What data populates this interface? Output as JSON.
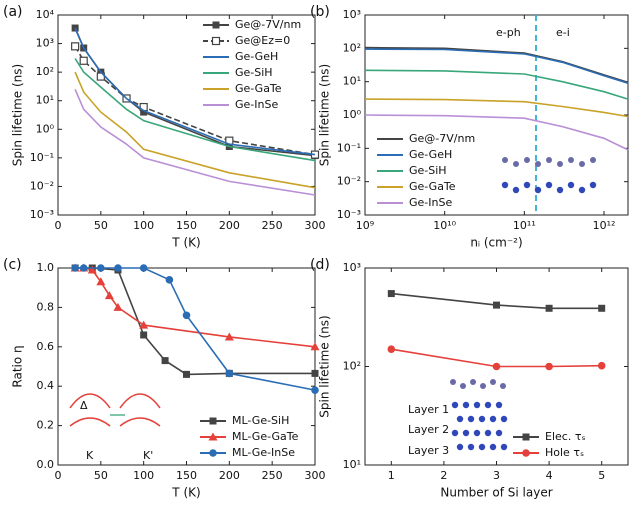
{
  "chart_data": [
    {
      "type": "line",
      "panel_label": "(a)",
      "x_label": "T (K)",
      "y_label": "Spin lifetime (ns)",
      "x": [
        20,
        30,
        50,
        80,
        100,
        200,
        300
      ],
      "xlim": [
        0,
        300
      ],
      "xticks": [
        0,
        50,
        100,
        150,
        200,
        250,
        300
      ],
      "ylim": [
        0.001,
        10000
      ],
      "ylog": true,
      "yticks": [
        {
          "value": 0.001,
          "label": "10⁻³"
        },
        {
          "value": 0.01,
          "label": "10⁻²"
        },
        {
          "value": 0.1,
          "label": "10⁻¹"
        },
        {
          "value": 1,
          "label": "10⁰"
        },
        {
          "value": 10,
          "label": "10¹"
        },
        {
          "value": 100,
          "label": "10²"
        },
        {
          "value": 1000,
          "label": "10³"
        },
        {
          "value": 10000,
          "label": "10⁴"
        }
      ],
      "legend": "upper right",
      "series": [
        {
          "name": "Ge@-7V/nm",
          "color": "#444444",
          "marker": "square",
          "values": [
            3500,
            700,
            100,
            12,
            4,
            0.25,
            0.12
          ]
        },
        {
          "name": "Ge@Ez=0",
          "color": "#444444",
          "marker": "open-square",
          "dash": true,
          "values": [
            800,
            250,
            70,
            12,
            6,
            0.4,
            0.13
          ]
        },
        {
          "name": "Ge-GeH",
          "color": "#2a6db5",
          "values": [
            3500,
            700,
            100,
            12,
            4.5,
            0.3,
            0.13
          ]
        },
        {
          "name": "Ge-SiH",
          "color": "#3aa77a",
          "values": [
            300,
            100,
            30,
            5,
            2,
            0.25,
            0.08
          ]
        },
        {
          "name": "Ge-GaTe",
          "color": "#c9a227",
          "values": [
            100,
            20,
            4,
            0.8,
            0.2,
            0.03,
            0.009
          ]
        },
        {
          "name": "Ge-InSe",
          "color": "#b98fd6",
          "values": [
            25,
            5,
            1.2,
            0.3,
            0.1,
            0.015,
            0.005
          ]
        }
      ]
    },
    {
      "type": "line",
      "panel_label": "(b)",
      "x_label": "nᵢ (cm⁻²)",
      "y_label": "Spin lifetime (ns)",
      "x": [
        1000000000,
        10000000000,
        100000000000,
        300000000000,
        1000000000000,
        2000000000000
      ],
      "xlim": [
        1000000000,
        2000000000000
      ],
      "xlog": true,
      "xticks": [
        {
          "value": 1000000000,
          "label": "10⁹"
        },
        {
          "value": 10000000000,
          "label": "10¹⁰"
        },
        {
          "value": 100000000000,
          "label": "10¹¹"
        },
        {
          "value": 1000000000000,
          "label": "10¹²"
        }
      ],
      "ylim": [
        0.001,
        1000
      ],
      "ylog": true,
      "yticks": [
        {
          "value": 0.001,
          "label": "10⁻³"
        },
        {
          "value": 0.01,
          "label": "10⁻²"
        },
        {
          "value": 0.1,
          "label": "10⁻¹"
        },
        {
          "value": 1,
          "label": "10⁰"
        },
        {
          "value": 10,
          "label": "10¹"
        },
        {
          "value": 100,
          "label": "10²"
        },
        {
          "value": 1000,
          "label": "10³"
        }
      ],
      "vline": 140000000000,
      "vline_color": "#3fb6d8",
      "annotations": [
        "e-ph",
        "e-i"
      ],
      "legend": "lower left",
      "series": [
        {
          "name": "Ge@-7V/nm",
          "color": "#444444",
          "values": [
            105,
            100,
            72,
            40,
            16,
            9.5
          ]
        },
        {
          "name": "Ge-GeH",
          "color": "#2a6db5",
          "values": [
            95,
            92,
            68,
            38,
            15,
            9
          ]
        },
        {
          "name": "Ge-SiH",
          "color": "#3aa77a",
          "values": [
            22,
            21,
            17,
            10,
            5,
            3
          ]
        },
        {
          "name": "Ge-GaTe",
          "color": "#c9a227",
          "values": [
            3,
            2.9,
            2.5,
            1.8,
            1.2,
            0.9
          ]
        },
        {
          "name": "Ge-InSe",
          "color": "#b98fd6",
          "values": [
            1,
            0.95,
            0.8,
            0.45,
            0.2,
            0.09
          ]
        }
      ]
    },
    {
      "type": "line",
      "panel_label": "(c)",
      "x_label": "T (K)",
      "y_label": "Ratio η",
      "xlim": [
        0,
        300
      ],
      "xticks": [
        0,
        50,
        100,
        150,
        200,
        250,
        300
      ],
      "ylim": [
        0,
        1
      ],
      "yticks": [
        {
          "value": 0,
          "label": "0.0"
        },
        0.2,
        0.4,
        0.6,
        0.8,
        {
          "value": 1,
          "label": "1.0"
        }
      ],
      "annotations": [
        "Δ",
        "K",
        "K'"
      ],
      "legend": "lower right",
      "series": [
        {
          "name": "ML-Ge-SiH",
          "color": "#444444",
          "marker": "square",
          "x": [
            20,
            40,
            70,
            100,
            125,
            150,
            200,
            300
          ],
          "values": [
            1,
            1,
            0.99,
            0.66,
            0.53,
            0.46,
            0.465,
            0.465
          ]
        },
        {
          "name": "ML-Ge-GaTe",
          "color": "#e5403a",
          "marker": "triangle",
          "x": [
            20,
            30,
            40,
            50,
            60,
            70,
            100,
            200,
            300
          ],
          "values": [
            1,
            1,
            0.99,
            0.93,
            0.86,
            0.8,
            0.71,
            0.65,
            0.6
          ]
        },
        {
          "name": "ML-Ge-InSe",
          "color": "#2a6db5",
          "marker": "circle",
          "x": [
            20,
            30,
            50,
            70,
            100,
            130,
            150,
            200,
            300
          ],
          "values": [
            1,
            1,
            1,
            1,
            1,
            0.94,
            0.76,
            0.465,
            0.38
          ]
        }
      ]
    },
    {
      "type": "line",
      "panel_label": "(d)",
      "x_label": "Number of Si layer",
      "y_label": "Spin lifetime (ns)",
      "x": [
        1,
        3,
        4,
        5
      ],
      "xlim": [
        0.5,
        5.5
      ],
      "xticks": [
        1,
        2,
        3,
        4,
        5
      ],
      "ylim": [
        10,
        1000
      ],
      "ylog": true,
      "yticks": [
        {
          "value": 10,
          "label": "10¹"
        },
        {
          "value": 100,
          "label": "10²"
        },
        {
          "value": 1000,
          "label": "10³"
        }
      ],
      "annotations": [
        "Layer 1",
        "Layer 2",
        "Layer 3"
      ],
      "legend": "lower right",
      "series": [
        {
          "name": "Elec. τₛ",
          "color": "#444444",
          "marker": "square",
          "values": [
            550,
            420,
            390,
            390
          ]
        },
        {
          "name": "Hole  τₛ",
          "color": "#e5403a",
          "marker": "circle",
          "values": [
            150,
            100,
            100,
            102
          ]
        }
      ]
    }
  ]
}
